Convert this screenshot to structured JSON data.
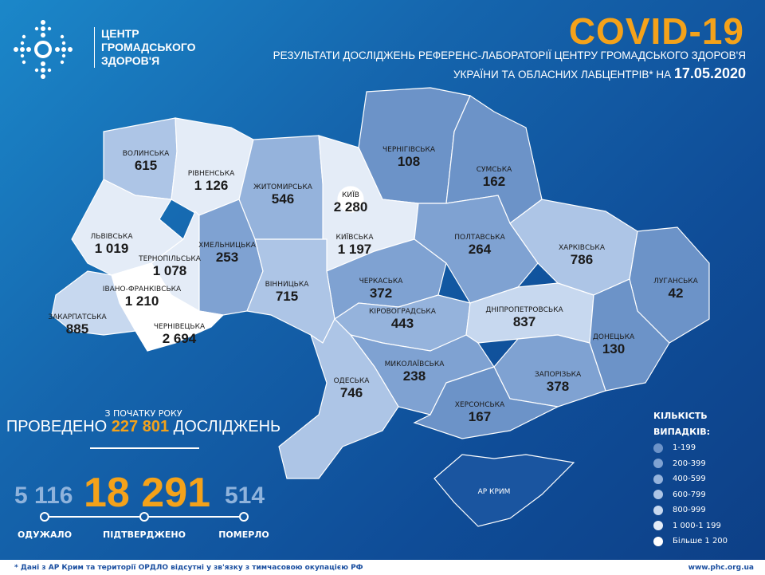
{
  "logo": {
    "lines": [
      "ЦЕНТР",
      "ГРОМАДСЬКОГО",
      "ЗДОРОВ'Я"
    ]
  },
  "header": {
    "title": "COVID-19",
    "subtitle_line1": "РЕЗУЛЬТАТИ ДОСЛІДЖЕНЬ РЕФЕРЕНС-ЛАБОРАТОРІЇ ЦЕНТРУ ГРОМАДСЬКОГО ЗДОРОВ'Я",
    "subtitle_line2": "УКРАЇНИ ТА ОБЛАСНИХ ЛАБЦЕНТРІВ* НА",
    "date": "17.05.2020"
  },
  "regions": [
    {
      "name": "ВОЛИНСЬКА",
      "value": "615",
      "cases": 615
    },
    {
      "name": "РІВНЕНСЬКА",
      "value": "1 126",
      "cases": 1126
    },
    {
      "name": "ЖИТОМИРСЬКА",
      "value": "546",
      "cases": 546
    },
    {
      "name": "КИЇВ",
      "value": "2 280",
      "cases": 2280
    },
    {
      "name": "ЧЕРНІГІВСЬКА",
      "value": "108",
      "cases": 108
    },
    {
      "name": "СУМСЬКА",
      "value": "162",
      "cases": 162
    },
    {
      "name": "ЛЬВІВСЬКА",
      "value": "1 019",
      "cases": 1019
    },
    {
      "name": "ТЕРНОПІЛЬСЬКА",
      "value": "1 078",
      "cases": 1078
    },
    {
      "name": "ХМЕЛЬНИЦЬКА",
      "value": "253",
      "cases": 253
    },
    {
      "name": "КИЇВСЬКА",
      "value": "1 197",
      "cases": 1197
    },
    {
      "name": "ПОЛТАВСЬКА",
      "value": "264",
      "cases": 264
    },
    {
      "name": "ХАРКІВСЬКА",
      "value": "786",
      "cases": 786
    },
    {
      "name": "ЛУГАНСЬКА",
      "value": "42",
      "cases": 42
    },
    {
      "name": "ЧЕРКАСЬКА",
      "value": "372",
      "cases": 372
    },
    {
      "name": "ВІННИЦЬКА",
      "value": "715",
      "cases": 715
    },
    {
      "name": "ІВАНО-ФРАНКІВСЬКА",
      "value": "1 210",
      "cases": 1210
    },
    {
      "name": "ЗАКАРПАТСЬКА",
      "value": "885",
      "cases": 885
    },
    {
      "name": "ЧЕРНІВЕЦЬКА",
      "value": "2 694",
      "cases": 2694
    },
    {
      "name": "КІРОВОГРАДСЬКА",
      "value": "443",
      "cases": 443
    },
    {
      "name": "ДНІПРОПЕТРОВСЬКА",
      "value": "837",
      "cases": 837
    },
    {
      "name": "ДОНЕЦЬКА",
      "value": "130",
      "cases": 130
    },
    {
      "name": "МИКОЛАЇВСЬКА",
      "value": "238",
      "cases": 238
    },
    {
      "name": "ОДЕСЬКА",
      "value": "746",
      "cases": 746
    },
    {
      "name": "ЗАПОРІЗЬКА",
      "value": "378",
      "cases": 378
    },
    {
      "name": "ХЕРСОНСЬКА",
      "value": "167",
      "cases": 167
    },
    {
      "name": "АР КРИМ",
      "value": "",
      "cases": null
    }
  ],
  "stats": {
    "since": "З ПОЧАТКУ РОКУ",
    "tests_prefix": "ПРОВЕДЕНО",
    "tests": "227 801",
    "tests_suffix": "ДОСЛІДЖЕНЬ",
    "recovered": "5 116",
    "confirmed": "18 291",
    "deaths": "514",
    "recovered_label": "ОДУЖАЛО",
    "confirmed_label": "ПІДТВЕРДЖЕНО",
    "deaths_label": "ПОМЕРЛО"
  },
  "legend": {
    "title1": "КІЛЬКІСТЬ",
    "title2": "ВИПАДКІВ:",
    "items": [
      {
        "label": "1-199",
        "color": "#6c93c8"
      },
      {
        "label": "200-399",
        "color": "#7fa2d2"
      },
      {
        "label": "400-599",
        "color": "#95b3dc"
      },
      {
        "label": "600-799",
        "color": "#adc5e6"
      },
      {
        "label": "800-999",
        "color": "#c7d8ef"
      },
      {
        "label": "1 000-1 199",
        "color": "#e4ecf7"
      },
      {
        "label": "Більше 1 200",
        "color": "#ffffff"
      }
    ]
  },
  "footer": {
    "note": "* Дані з АР Крим та території ОРДЛО відсутні у зв'язку з тимчасовою окупацією РФ",
    "url": "www.phc.org.ua"
  },
  "colors": {
    "accent": "#f4a21a",
    "crimea": "#1a55a0"
  }
}
